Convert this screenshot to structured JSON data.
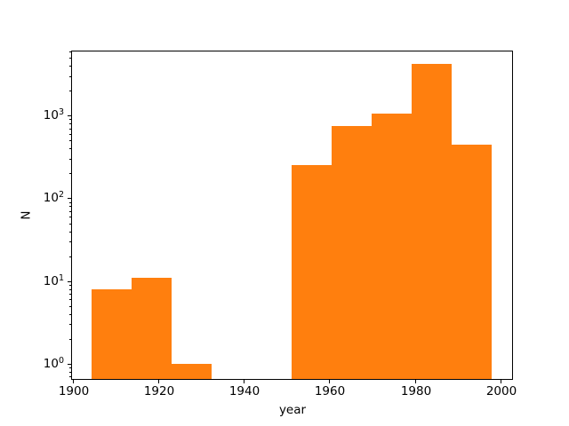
{
  "chart_data": {
    "type": "bar",
    "subtype": "histogram",
    "title": "",
    "xlabel": "year",
    "ylabel": "N",
    "yscale": "log",
    "grid": false,
    "legend": null,
    "bar_color": "#ff7f0e",
    "axis_color": "#000000",
    "background_color": "#ffffff",
    "bin_edges": [
      1904.1,
      1913.5,
      1922.9,
      1932.2,
      1941.6,
      1951.0,
      1960.3,
      1969.7,
      1979.1,
      1988.4,
      1997.8
    ],
    "counts": [
      8,
      11,
      1,
      0,
      0,
      250,
      740,
      1050,
      4200,
      440
    ],
    "xlim": [
      1899.3,
      2002.8
    ],
    "ylim": [
      0.64,
      6100
    ],
    "xticks": [
      1900,
      1920,
      1940,
      1960,
      1980,
      2000
    ],
    "ytick_labels": [
      "10^0",
      "10^1",
      "10^2",
      "10^3"
    ],
    "ytick_values": [
      1,
      10,
      100,
      1000
    ]
  }
}
